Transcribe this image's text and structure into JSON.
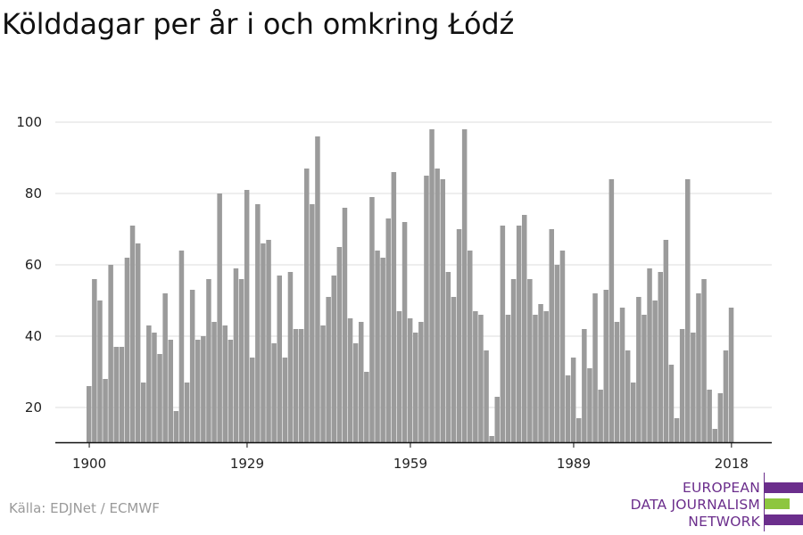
{
  "title": "Kölddagar per år i och omkring Łódź",
  "source": "Källa: EDJNet / ECMWF",
  "logo": {
    "lines": [
      "EUROPEAN",
      "DATA JOURNALISM",
      "NETWORK"
    ],
    "colors": {
      "purple": "#6b2e8c",
      "green": "#8dc63f"
    }
  },
  "colors": {
    "bar": "#9b9b9b",
    "grid": "#dddddd",
    "axis": "#111111"
  },
  "chart_data": {
    "type": "bar",
    "x_start": 1900,
    "x_end": 2018,
    "x_ticks": [
      1900,
      1929,
      1959,
      1989,
      2018
    ],
    "y_ticks": [
      20,
      40,
      60,
      80,
      100
    ],
    "ylim": [
      10,
      100
    ],
    "grid": true,
    "xlabel": "",
    "ylabel": "",
    "values": [
      26,
      56,
      50,
      28,
      60,
      37,
      37,
      62,
      71,
      66,
      27,
      43,
      41,
      35,
      52,
      39,
      19,
      64,
      27,
      53,
      39,
      40,
      56,
      44,
      80,
      43,
      39,
      59,
      56,
      81,
      34,
      77,
      66,
      67,
      38,
      57,
      34,
      58,
      42,
      42,
      87,
      77,
      96,
      43,
      51,
      57,
      65,
      76,
      45,
      38,
      44,
      30,
      79,
      64,
      62,
      73,
      86,
      47,
      72,
      45,
      41,
      44,
      85,
      98,
      87,
      84,
      58,
      51,
      70,
      98,
      64,
      47,
      46,
      36,
      12,
      23,
      71,
      46,
      56,
      71,
      74,
      56,
      46,
      49,
      47,
      70,
      60,
      64,
      29,
      34,
      17,
      42,
      31,
      52,
      25,
      53,
      84,
      44,
      48,
      36,
      27,
      51,
      46,
      59,
      50,
      58,
      67,
      32,
      17,
      42,
      84,
      41,
      52,
      56,
      25,
      14,
      24,
      36,
      48
    ]
  }
}
